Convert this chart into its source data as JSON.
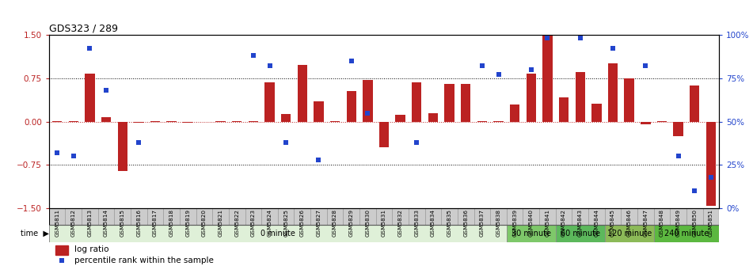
{
  "title": "GDS323 / 289",
  "categories": [
    "GSM5811",
    "GSM5812",
    "GSM5813",
    "GSM5814",
    "GSM5815",
    "GSM5816",
    "GSM5817",
    "GSM5818",
    "GSM5819",
    "GSM5820",
    "GSM5821",
    "GSM5822",
    "GSM5823",
    "GSM5824",
    "GSM5825",
    "GSM5826",
    "GSM5827",
    "GSM5828",
    "GSM5829",
    "GSM5830",
    "GSM5831",
    "GSM5832",
    "GSM5833",
    "GSM5834",
    "GSM5835",
    "GSM5836",
    "GSM5837",
    "GSM5838",
    "GSM5839",
    "GSM5840",
    "GSM5841",
    "GSM5842",
    "GSM5843",
    "GSM5844",
    "GSM5845",
    "GSM5846",
    "GSM5847",
    "GSM5848",
    "GSM5849",
    "GSM5850",
    "GSM5851"
  ],
  "log_ratio": [
    0.0,
    0.0,
    0.82,
    0.08,
    -0.85,
    -0.02,
    0.0,
    0.0,
    -0.02,
    -0.01,
    0.0,
    0.0,
    0.0,
    0.68,
    0.13,
    0.98,
    0.35,
    0.0,
    0.52,
    0.72,
    -0.45,
    0.12,
    0.68,
    0.15,
    0.65,
    0.65,
    0.0,
    0.0,
    0.3,
    0.83,
    1.5,
    0.42,
    0.85,
    0.31,
    1.0,
    0.75,
    -0.05,
    0.0,
    -0.25,
    0.62,
    -1.45
  ],
  "percentile": [
    0.32,
    0.3,
    0.92,
    0.68,
    null,
    0.38,
    null,
    null,
    null,
    null,
    null,
    null,
    0.88,
    0.82,
    0.38,
    null,
    0.28,
    null,
    0.85,
    0.55,
    null,
    null,
    0.38,
    null,
    null,
    null,
    0.82,
    0.77,
    null,
    0.8,
    0.98,
    null,
    0.98,
    null,
    0.92,
    null,
    0.82,
    null,
    0.3,
    0.1,
    0.18
  ],
  "time_starts": [
    0,
    28,
    31,
    34,
    37
  ],
  "time_ends": [
    28,
    31,
    34,
    37,
    41
  ],
  "time_labels": [
    "0 minute",
    "30 minute",
    "60 minute",
    "120 minute",
    "240 minute"
  ],
  "time_colors": [
    "#dff0d8",
    "#7ec86a",
    "#5cb85c",
    "#8cba58",
    "#5cb840"
  ],
  "bar_color": "#bb2222",
  "dot_color": "#2244cc",
  "ylim": [
    -1.5,
    1.5
  ],
  "yticks_left": [
    -1.5,
    -0.75,
    0.0,
    0.75,
    1.5
  ],
  "yticks_right_labels": [
    "0%",
    "25%",
    "50%",
    "75%",
    "100%"
  ],
  "hlines_dotted_black": [
    0.75,
    -0.75
  ],
  "bg_color": "#ffffff",
  "fig_width": 9.51,
  "fig_height": 3.36
}
